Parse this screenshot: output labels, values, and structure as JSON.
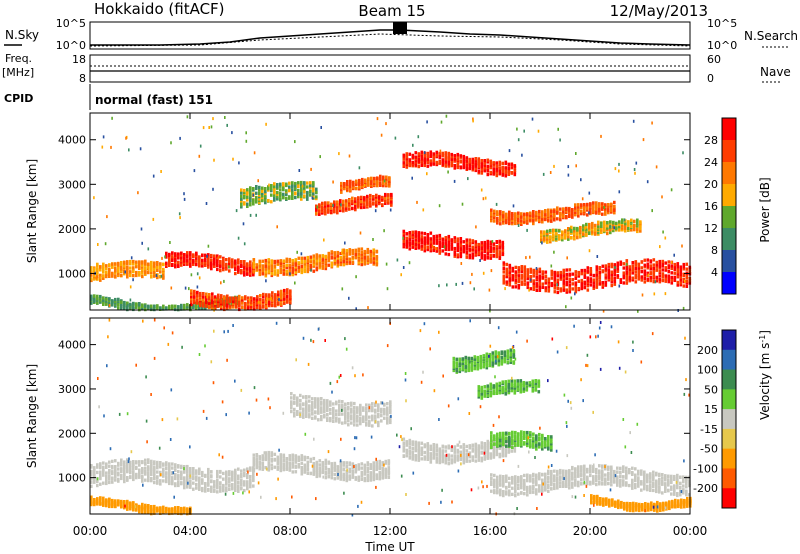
{
  "header": {
    "station": "Hokkaido (fitACF)",
    "beam": "Beam 15",
    "date": "12/May/2013"
  },
  "noise_panel": {
    "left_label": "N.Sky",
    "right_label": "N.Search",
    "ticks_left": [
      "10^5",
      "10^0"
    ],
    "ticks_right": [
      "10^5",
      "10^0"
    ]
  },
  "freq_panel": {
    "left_label_1": "Freq.",
    "left_label_2": "[MHz]",
    "right_label": "Nave",
    "ticks_left": [
      "18",
      "8"
    ],
    "ticks_right": [
      "60",
      "0"
    ]
  },
  "cpid_panel": {
    "label": "CPID",
    "value": "normal (fast) 151"
  },
  "range_axis": {
    "label": "Slant Range [km]",
    "ticks": [
      "4000",
      "3000",
      "2000",
      "1000"
    ]
  },
  "time_axis": {
    "label": "Time UT",
    "ticks": [
      "00:00",
      "04:00",
      "08:00",
      "12:00",
      "16:00",
      "20:00",
      "00:00"
    ]
  },
  "power_scale": {
    "label": "Power [dB]",
    "ticks": [
      "28",
      "24",
      "20",
      "16",
      "12",
      "8",
      "4"
    ],
    "colors": [
      "#ff0000",
      "#ff3c00",
      "#ff7800",
      "#ffaa00",
      "#5fa82c",
      "#3c8c64",
      "#2850a0",
      "#0000ff"
    ]
  },
  "velocity_scale": {
    "label": "Velocity [m s",
    "label_sup": "-1",
    "label_end": "]",
    "ticks": [
      "200",
      "100",
      "50",
      "15",
      "-15",
      "-50",
      "-100",
      "-200"
    ],
    "colors": [
      "#1f1fa8",
      "#2c6cb4",
      "#3c8c50",
      "#66cc33",
      "#c8c8c0",
      "#e6c84c",
      "#ff9a00",
      "#ff5a00",
      "#ff0000"
    ]
  },
  "chart_data": [
    {
      "type": "heatmap",
      "name": "power",
      "x_range_hours": [
        0,
        24
      ],
      "y_range_km": [
        180,
        4600
      ],
      "colorbar_range_dB": [
        0,
        32
      ],
      "bands": [
        {
          "t0": 0.0,
          "t1": 3.0,
          "r_center": 1050,
          "width": 350,
          "value": 20
        },
        {
          "t0": 3.0,
          "t1": 6.5,
          "r_center": 1250,
          "width": 300,
          "value": 28
        },
        {
          "t0": 0.0,
          "t1": 6.0,
          "r_center": 350,
          "width": 150,
          "value": 12
        },
        {
          "t0": 4.0,
          "t1": 8.0,
          "r_center": 500,
          "width": 300,
          "value": 26
        },
        {
          "t0": 6.5,
          "t1": 11.5,
          "r_center": 1300,
          "width": 350,
          "value": 22
        },
        {
          "t0": 9.0,
          "t1": 12.0,
          "r_center": 2600,
          "width": 250,
          "value": 26
        },
        {
          "t0": 10.0,
          "t1": 12.0,
          "r_center": 3000,
          "width": 200,
          "value": 24
        },
        {
          "t0": 12.5,
          "t1": 17.0,
          "r_center": 3500,
          "width": 300,
          "value": 28
        },
        {
          "t0": 12.5,
          "t1": 16.5,
          "r_center": 1700,
          "width": 400,
          "value": 30
        },
        {
          "t0": 16.5,
          "t1": 24.0,
          "r_center": 1000,
          "width": 500,
          "value": 28
        },
        {
          "t0": 16.0,
          "t1": 21.0,
          "r_center": 2400,
          "width": 250,
          "value": 24
        },
        {
          "t0": 18.0,
          "t1": 22.0,
          "r_center": 2000,
          "width": 250,
          "value": 18
        },
        {
          "t0": 6.0,
          "t1": 9.0,
          "r_center": 2800,
          "width": 400,
          "value": 14
        }
      ]
    },
    {
      "type": "heatmap",
      "name": "velocity",
      "x_range_hours": [
        0,
        24
      ],
      "y_range_km": [
        180,
        4600
      ],
      "colorbar_range_mps": [
        -240,
        240
      ],
      "bands": [
        {
          "t0": 0.0,
          "t1": 6.5,
          "r_center": 1100,
          "width": 500,
          "value": 0
        },
        {
          "t0": 6.5,
          "t1": 12.0,
          "r_center": 1300,
          "width": 400,
          "value": 0
        },
        {
          "t0": 8.0,
          "t1": 12.0,
          "r_center": 2600,
          "width": 500,
          "value": 0
        },
        {
          "t0": 12.5,
          "t1": 17.0,
          "r_center": 1700,
          "width": 400,
          "value": 0
        },
        {
          "t0": 16.0,
          "t1": 24.0,
          "r_center": 1000,
          "width": 450,
          "value": 0
        },
        {
          "t0": 14.5,
          "t1": 17.0,
          "r_center": 3700,
          "width": 300,
          "value": 30
        },
        {
          "t0": 15.5,
          "t1": 18.0,
          "r_center": 3000,
          "width": 250,
          "value": 30
        },
        {
          "t0": 16.0,
          "t1": 18.5,
          "r_center": 1800,
          "width": 350,
          "value": 30
        },
        {
          "t0": 0.0,
          "t1": 4.0,
          "r_center": 400,
          "width": 150,
          "value": -70
        },
        {
          "t0": 20.0,
          "t1": 24.0,
          "r_center": 500,
          "width": 150,
          "value": -70
        }
      ]
    }
  ]
}
